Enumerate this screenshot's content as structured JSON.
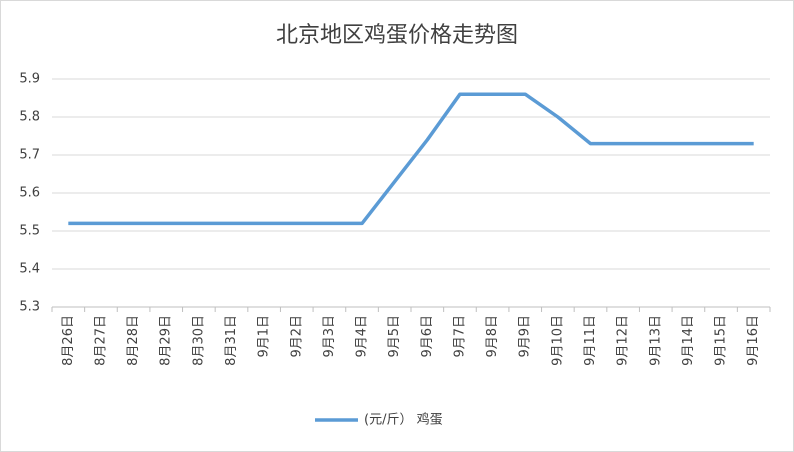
{
  "chart_data": {
    "type": "line",
    "title": "北京地区鸡蛋价格走势图",
    "categories": [
      "8月26日",
      "8月27日",
      "8月28日",
      "8月29日",
      "8月30日",
      "8月31日",
      "9月1日",
      "9月2日",
      "9月3日",
      "9月4日",
      "9月5日",
      "9月6日",
      "9月7日",
      "9月8日",
      "9月9日",
      "9月10日",
      "9月11日",
      "9月12日",
      "9月13日",
      "9月14日",
      "9月15日",
      "9月16日"
    ],
    "series": [
      {
        "name": "(元/斤） 鸡蛋",
        "color": "#5b9bd5",
        "values": [
          5.52,
          5.52,
          5.52,
          5.52,
          5.52,
          5.52,
          5.52,
          5.52,
          5.52,
          5.52,
          5.63,
          5.74,
          5.86,
          5.86,
          5.86,
          5.8,
          5.73,
          5.73,
          5.73,
          5.73,
          5.73,
          5.73
        ]
      }
    ],
    "ylim": [
      5.3,
      5.9
    ],
    "yticks": [
      5.3,
      5.4,
      5.5,
      5.6,
      5.7,
      5.8,
      5.9
    ],
    "grid": true,
    "legend": "bottom"
  }
}
